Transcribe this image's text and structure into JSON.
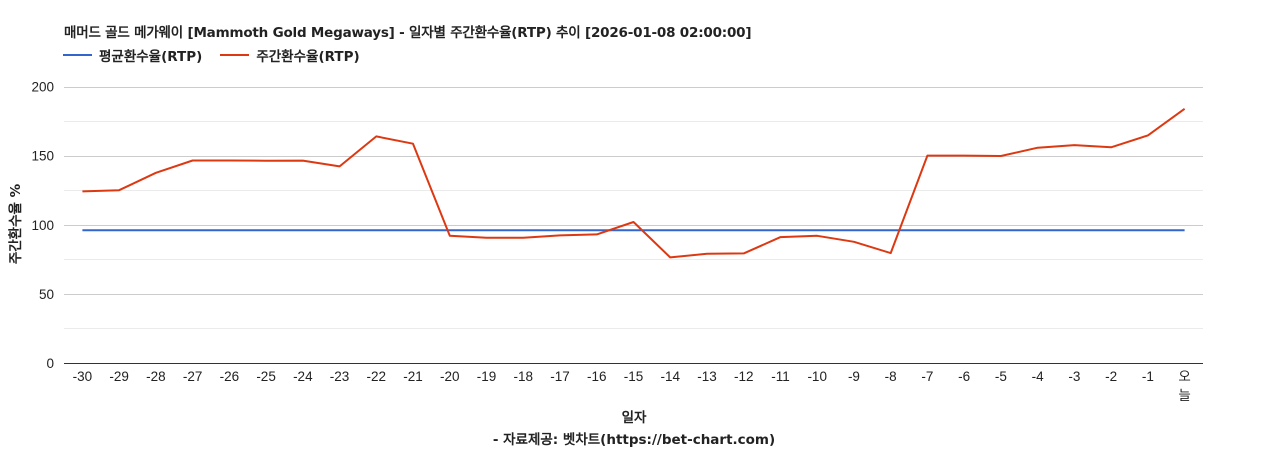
{
  "title": "매머드 골드 메가웨이 [Mammoth Gold Megaways] - 일자별 주간환수율(RTP) 추이 [2026-01-08 02:00:00]",
  "legend": [
    {
      "label": "평균환수율(RTP)",
      "color": "#3366cc"
    },
    {
      "label": "주간환수율(RTP)",
      "color": "#dc3912"
    }
  ],
  "xlabel": "일자",
  "ylabel": "주간환수율 %",
  "source": "- 자료제공: 벳차트(https://bet-chart.com)",
  "chart_data": {
    "type": "line",
    "title": "매머드 골드 메가웨이 [Mammoth Gold Megaways] - 일자별 주간환수율(RTP) 추이 [2026-01-08 02:00:00]",
    "xlabel": "일자",
    "ylabel": "주간환수율 %",
    "ylim": [
      0,
      200
    ],
    "yticks": [
      0,
      50,
      100,
      150,
      200
    ],
    "grid": true,
    "legend_position": "top",
    "categories": [
      "-30",
      "-29",
      "-28",
      "-27",
      "-26",
      "-25",
      "-24",
      "-23",
      "-22",
      "-21",
      "-20",
      "-19",
      "-18",
      "-17",
      "-16",
      "-15",
      "-14",
      "-13",
      "-12",
      "-11",
      "-10",
      "-9",
      "-8",
      "-7",
      "-6",
      "-5",
      "-4",
      "-3",
      "-2",
      "-1",
      "오늘"
    ],
    "series": [
      {
        "name": "평균환수율(RTP)",
        "color": "#3366cc",
        "values": [
          96,
          96,
          96,
          96,
          96,
          96,
          96,
          96,
          96,
          96,
          96,
          96,
          96,
          96,
          96,
          96,
          96,
          96,
          96,
          96,
          96,
          96,
          96,
          96,
          96,
          96,
          96,
          96,
          96,
          96,
          96
        ]
      },
      {
        "name": "주간환수율(RTP)",
        "color": "#dc3912",
        "values": [
          124.1,
          125,
          137.6,
          146.5,
          146.5,
          146.3,
          146.4,
          142.2,
          163.9,
          158.6,
          92,
          90.6,
          90.6,
          92.3,
          93,
          102,
          76.4,
          79,
          79.3,
          91.1,
          92,
          87.7,
          79.5,
          150,
          150,
          149.7,
          155.7,
          157.6,
          156,
          164.6,
          183.9
        ]
      }
    ]
  }
}
